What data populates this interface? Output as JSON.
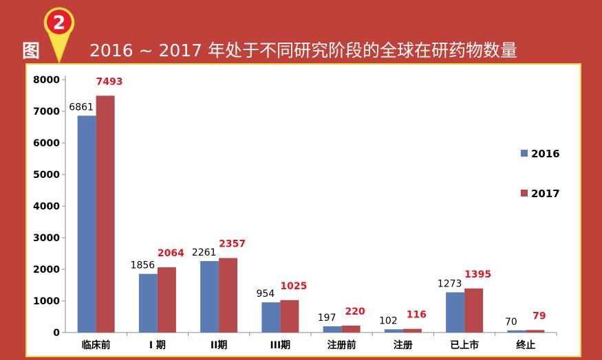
{
  "header": {
    "figure_label": "图",
    "badge_number": "2",
    "title": "2016 ~ 2017 年处于不同研究阶段的全球在研药物数量"
  },
  "colors": {
    "background": "#c0403a",
    "frame_border": "#f0d140",
    "series_2016": "#5b7bb5",
    "series_2017": "#b5484a",
    "label_2017": "#e0151f",
    "badge_fill": "#f8e34a"
  },
  "chart_data": {
    "type": "bar",
    "title": "2016 ~ 2017 年处于不同研究阶段的全球在研药物数量",
    "xlabel": "",
    "ylabel": "",
    "categories": [
      "临床前",
      "I 期",
      "II期",
      "III期",
      "注册前",
      "注册",
      "已上市",
      "终止"
    ],
    "series": [
      {
        "name": "2016",
        "values": [
          6861,
          1856,
          2261,
          954,
          197,
          102,
          1273,
          70
        ]
      },
      {
        "name": "2017",
        "values": [
          7493,
          2064,
          2357,
          1025,
          220,
          116,
          1395,
          79
        ]
      }
    ],
    "ylim": [
      0,
      8000
    ],
    "yticks": [
      0,
      1000,
      2000,
      3000,
      4000,
      5000,
      6000,
      7000,
      8000
    ],
    "grid": false,
    "legend_position": "right"
  }
}
